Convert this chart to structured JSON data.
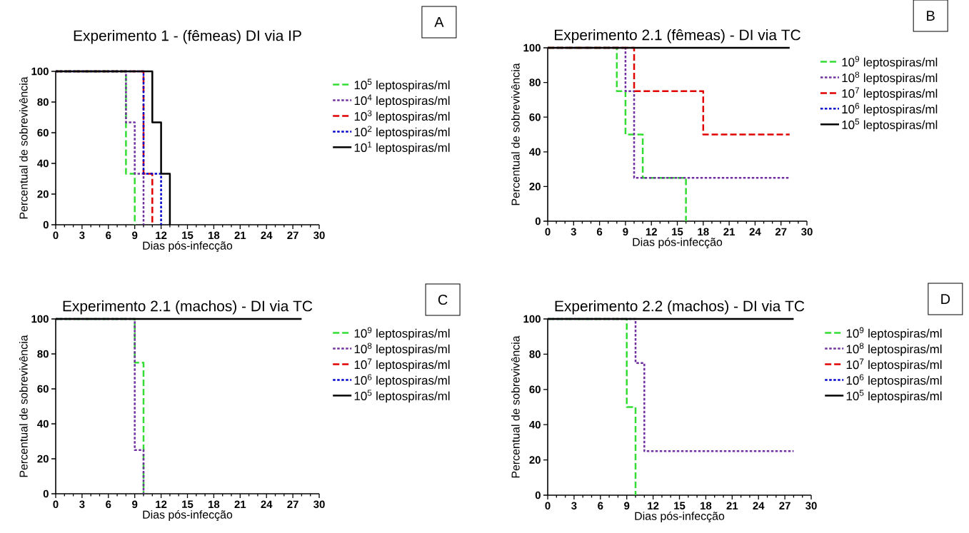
{
  "chart_data": [
    {
      "type": "step",
      "title": "Experimento 1 - (fêmeas) DI via IP",
      "xlabel": "Dias pós-infecção",
      "ylabel": "Percentual de sobrevivência",
      "annotations": [
        "A"
      ],
      "xlim": [
        0,
        30
      ],
      "xticks": [
        0,
        3,
        6,
        9,
        12,
        15,
        18,
        21,
        24,
        27,
        30
      ],
      "ylim": [
        0,
        100
      ],
      "yticks": [
        0,
        20,
        40,
        60,
        80,
        100
      ],
      "legend": "right",
      "series": [
        {
          "name": "10$^{5}$ leptospiras/ml",
          "color": "#33dd33",
          "line_style": "dashed",
          "x": [
            0,
            8,
            9
          ],
          "values": [
            100,
            33.3,
            0
          ]
        },
        {
          "name": "10$^{4}$ leptospiras/ml",
          "color": "#7030a0",
          "line_style": "dotted",
          "x": [
            0,
            8,
            9,
            10
          ],
          "values": [
            100,
            66.7,
            33.3,
            0
          ]
        },
        {
          "name": "10$^{3}$ leptospiras/ml",
          "color": "#e00000",
          "line_style": "dashed",
          "x": [
            0,
            10,
            11
          ],
          "values": [
            100,
            33.3,
            0
          ]
        },
        {
          "name": "10$^{2}$ leptospiras/ml",
          "color": "#0000cc",
          "line_style": "dotted",
          "x": [
            0,
            10,
            12
          ],
          "values": [
            100,
            33.3,
            0
          ]
        },
        {
          "name": "10$^{1}$ leptospiras/ml",
          "color": "#000000",
          "line_style": "solid",
          "x": [
            0,
            11,
            12,
            13
          ],
          "values": [
            100,
            66.7,
            33.3,
            0
          ]
        }
      ]
    },
    {
      "type": "step",
      "title": "Experimento 2.1 (fêmeas) - DI via TC",
      "xlabel": "Dias pós-infecção",
      "ylabel": "Percentual de sobrevivência",
      "annotations": [
        "B"
      ],
      "xlim": [
        0,
        30
      ],
      "xticks": [
        0,
        3,
        6,
        9,
        12,
        15,
        18,
        21,
        24,
        27,
        30
      ],
      "ylim": [
        0,
        100
      ],
      "yticks": [
        0,
        20,
        40,
        60,
        80,
        100
      ],
      "legend": "right",
      "series": [
        {
          "name": "10$^{9}$ leptospiras/ml",
          "color": "#33dd33",
          "line_style": "dashed",
          "x": [
            0,
            8,
            9,
            11,
            16
          ],
          "values": [
            100,
            75,
            50,
            25,
            0
          ]
        },
        {
          "name": "10$^{8}$ leptospiras/ml",
          "color": "#7030a0",
          "line_style": "dotted",
          "x": [
            0,
            9,
            10,
            28
          ],
          "values": [
            100,
            75,
            25,
            25
          ]
        },
        {
          "name": "10$^{7}$ leptospiras/ml",
          "color": "#e00000",
          "line_style": "dashed",
          "x": [
            0,
            10,
            18,
            28
          ],
          "values": [
            100,
            75,
            50,
            50
          ]
        },
        {
          "name": "10$^{6}$ leptospiras/ml",
          "color": "#0000cc",
          "line_style": "dotted"
        },
        {
          "name": "10$^{5}$ leptospiras/ml",
          "color": "#000000",
          "line_style": "solid",
          "x": [
            0,
            28
          ],
          "values": [
            100,
            100
          ]
        }
      ]
    },
    {
      "type": "step",
      "title": "Experimento 2.1 (machos) - DI via TC",
      "xlabel": "Dias pós-infecção",
      "ylabel": "Percentual de sobrevivência",
      "annotations": [
        "C"
      ],
      "xlim": [
        0,
        30
      ],
      "xticks": [
        0,
        3,
        6,
        9,
        12,
        15,
        18,
        21,
        24,
        27,
        30
      ],
      "ylim": [
        0,
        100
      ],
      "yticks": [
        0,
        20,
        40,
        60,
        80,
        100
      ],
      "legend": "right",
      "series": [
        {
          "name": "10$^{9}$ leptospiras/ml",
          "color": "#33dd33",
          "line_style": "dashed",
          "x": [
            0,
            9,
            10
          ],
          "values": [
            100,
            75,
            0
          ]
        },
        {
          "name": "10$^{8}$ leptospiras/ml",
          "color": "#7030a0",
          "line_style": "dotted",
          "x": [
            0,
            9,
            10
          ],
          "values": [
            100,
            25,
            0
          ]
        },
        {
          "name": "10$^{7}$ leptospiras/ml",
          "color": "#e00000",
          "line_style": "dashed"
        },
        {
          "name": "10$^{6}$ leptospiras/ml",
          "color": "#0000cc",
          "line_style": "dotted"
        },
        {
          "name": "10$^{5}$ leptospiras/ml",
          "color": "#000000",
          "line_style": "solid",
          "x": [
            0,
            28
          ],
          "values": [
            100,
            100
          ]
        }
      ]
    },
    {
      "type": "step",
      "title": "Experimento 2.2 (machos) - DI via TC",
      "xlabel": "Dias pós-infecção",
      "ylabel": "Percentual de sobrevivência",
      "annotations": [
        "D"
      ],
      "xlim": [
        0,
        30
      ],
      "xticks": [
        0,
        3,
        6,
        9,
        12,
        15,
        18,
        21,
        24,
        27,
        30
      ],
      "ylim": [
        0,
        100
      ],
      "yticks": [
        0,
        20,
        40,
        60,
        80,
        100
      ],
      "legend": "right",
      "series": [
        {
          "name": "10$^{9}$ leptospiras/ml",
          "color": "#33dd33",
          "line_style": "dashed",
          "x": [
            0,
            9,
            10
          ],
          "values": [
            100,
            50,
            0
          ]
        },
        {
          "name": "10$^{8}$ leptospiras/ml",
          "color": "#7030a0",
          "line_style": "dotted",
          "x": [
            0,
            10,
            11,
            28
          ],
          "values": [
            100,
            75,
            25,
            25
          ]
        },
        {
          "name": "10$^{7}$ leptospiras/ml",
          "color": "#e00000",
          "line_style": "dashed"
        },
        {
          "name": "10$^{6}$ leptospiras/ml",
          "color": "#0000cc",
          "line_style": "dotted"
        },
        {
          "name": "10$^{5}$ leptospiras/ml",
          "color": "#000000",
          "line_style": "solid",
          "x": [
            0,
            28
          ],
          "values": [
            100,
            100
          ]
        }
      ]
    }
  ]
}
